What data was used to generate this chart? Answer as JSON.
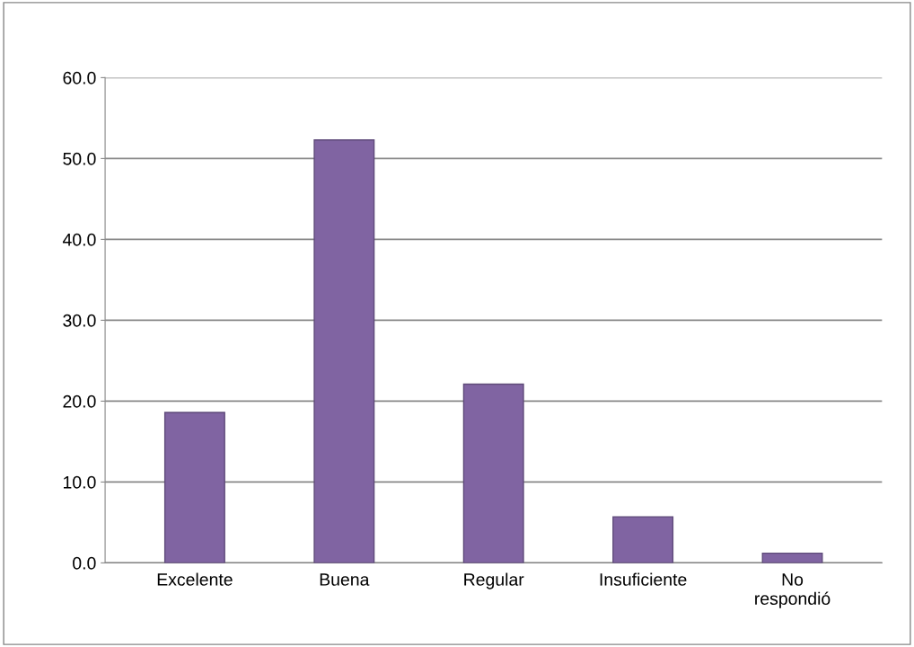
{
  "chart_data": {
    "type": "bar",
    "categories": [
      "Excelente",
      "Buena",
      "Regular",
      "Insuficiente",
      "No\nrespondió"
    ],
    "values": [
      18.6,
      52.3,
      22.1,
      5.7,
      1.2
    ],
    "color": "#8064a2",
    "ylim": [
      0,
      60
    ],
    "yticks": [
      {
        "value": 0,
        "label": "0.0"
      },
      {
        "value": 10,
        "label": "10.0"
      },
      {
        "value": 20,
        "label": "20.0"
      },
      {
        "value": 30,
        "label": "30.0"
      },
      {
        "value": 40,
        "label": "40.0"
      },
      {
        "value": 50,
        "label": "50.0"
      },
      {
        "value": 60,
        "label": "60.0"
      }
    ],
    "grid": "y"
  }
}
